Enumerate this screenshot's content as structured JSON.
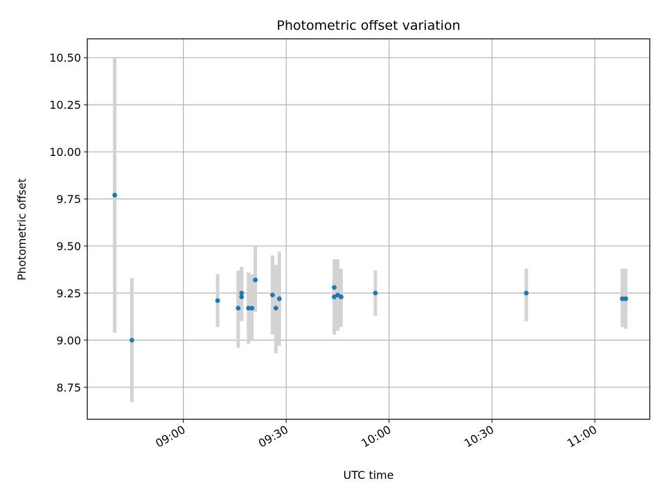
{
  "chart_data": {
    "type": "scatter",
    "title": "Photometric offset variation",
    "xlabel": "UTC time",
    "ylabel": "Photometric offset",
    "x_ticks": [
      "09:00",
      "09:30",
      "10:00",
      "10:30",
      "11:00"
    ],
    "y_ticks": [
      "8.75",
      "9.00",
      "9.25",
      "9.50",
      "9.75",
      "10.00",
      "10.25",
      "10.50"
    ],
    "xlim": [
      "08:32",
      "11:16"
    ],
    "ylim": [
      8.58,
      10.6
    ],
    "grid": true,
    "error_bar_color": "#d3d3d3",
    "point_color": "#1f77b4",
    "points": [
      {
        "x": "08:40",
        "y": 9.77,
        "err_low": 9.04,
        "err_high": 10.5
      },
      {
        "x": "08:45",
        "y": 9.0,
        "err_low": 8.67,
        "err_high": 9.33
      },
      {
        "x": "09:10",
        "y": 9.21,
        "err_low": 9.07,
        "err_high": 9.35
      },
      {
        "x": "09:16",
        "y": 9.17,
        "err_low": 8.96,
        "err_high": 9.37
      },
      {
        "x": "09:17",
        "y": 9.23,
        "err_low": 9.1,
        "err_high": 9.37
      },
      {
        "x": "09:17",
        "y": 9.25,
        "err_low": 9.11,
        "err_high": 9.39
      },
      {
        "x": "09:19",
        "y": 9.17,
        "err_low": 8.98,
        "err_high": 9.36
      },
      {
        "x": "09:20",
        "y": 9.17,
        "err_low": 9.0,
        "err_high": 9.35
      },
      {
        "x": "09:21",
        "y": 9.32,
        "err_low": 9.15,
        "err_high": 9.5
      },
      {
        "x": "09:26",
        "y": 9.24,
        "err_low": 9.03,
        "err_high": 9.45
      },
      {
        "x": "09:27",
        "y": 9.17,
        "err_low": 8.93,
        "err_high": 9.4
      },
      {
        "x": "09:28",
        "y": 9.22,
        "err_low": 8.97,
        "err_high": 9.47
      },
      {
        "x": "09:44",
        "y": 9.23,
        "err_low": 9.03,
        "err_high": 9.43
      },
      {
        "x": "09:44",
        "y": 9.28,
        "err_low": 9.1,
        "err_high": 9.43
      },
      {
        "x": "09:45",
        "y": 9.24,
        "err_low": 9.05,
        "err_high": 9.43
      },
      {
        "x": "09:46",
        "y": 9.23,
        "err_low": 9.07,
        "err_high": 9.38
      },
      {
        "x": "09:46",
        "y": 9.23,
        "err_low": 9.11,
        "err_high": 9.35
      },
      {
        "x": "09:56",
        "y": 9.25,
        "err_low": 9.13,
        "err_high": 9.37
      },
      {
        "x": "10:40",
        "y": 9.25,
        "err_low": 9.1,
        "err_high": 9.38
      },
      {
        "x": "11:08",
        "y": 9.22,
        "err_low": 9.07,
        "err_high": 9.38
      },
      {
        "x": "11:09",
        "y": 9.22,
        "err_low": 9.06,
        "err_high": 9.38
      }
    ]
  }
}
